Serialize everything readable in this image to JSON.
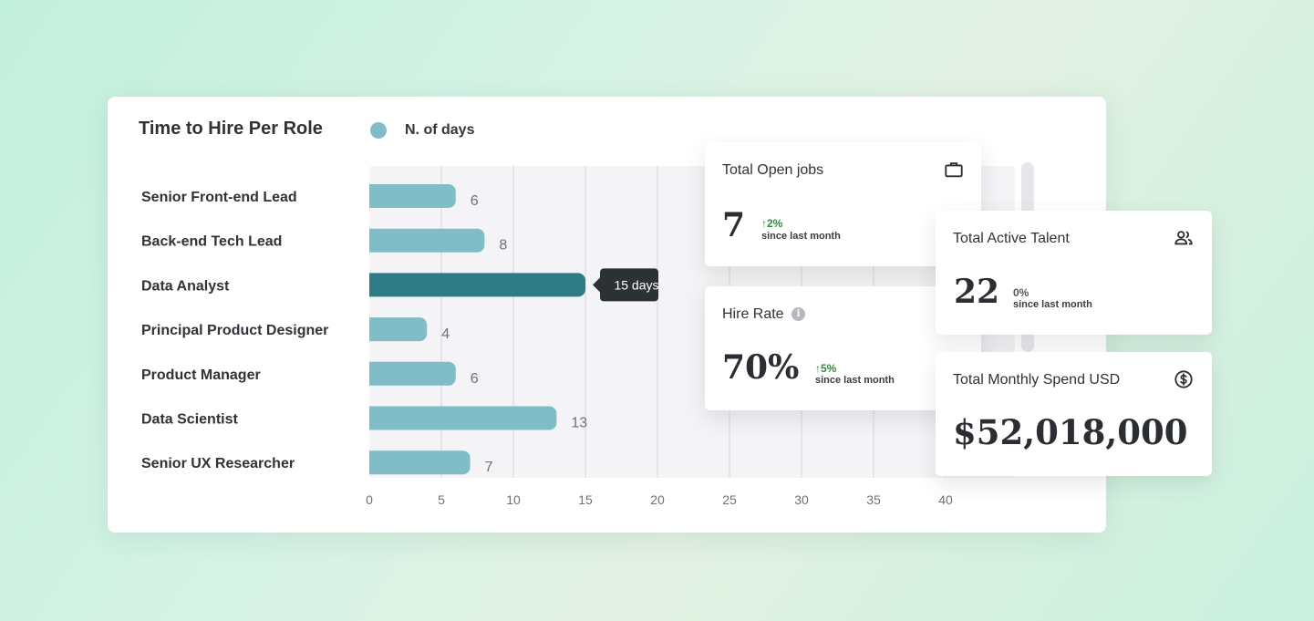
{
  "chart": {
    "title": "Time to Hire Per Role",
    "legend_label": "N. of days",
    "tooltip": "15 days"
  },
  "chart_data": {
    "type": "bar",
    "orientation": "horizontal",
    "title": "Time to Hire Per Role",
    "categories": [
      "Senior Front-end Lead",
      "Back-end Tech Lead",
      "Data Analyst",
      "Principal Product Designer",
      "Product Manager",
      "Data Scientist",
      "Senior UX Researcher"
    ],
    "series": [
      {
        "name": "N. of days",
        "values": [
          6,
          8,
          15,
          4,
          6,
          13,
          7
        ]
      }
    ],
    "highlighted_category": "Data Analyst",
    "xlim": [
      0,
      40
    ],
    "xticks": [
      0,
      5,
      10,
      15,
      20,
      25,
      30,
      35,
      40
    ],
    "grid": true,
    "legend_position": "top"
  },
  "cards": {
    "open_jobs": {
      "title": "Total Open jobs",
      "icon": "briefcase-icon",
      "value": "7",
      "delta": "↑2%",
      "delta_sub": "since last month"
    },
    "hire_rate": {
      "title": "Hire Rate",
      "icon": "info-icon",
      "info_glyph": "i",
      "value": "70%",
      "delta": "↑5%",
      "delta_sub": "since last month"
    },
    "active_talent": {
      "title": "Total Active Talent",
      "icon": "users-icon",
      "value": "22",
      "delta": "0%",
      "delta_sub": "since last month"
    },
    "monthly_spend": {
      "title": "Total Monthly Spend USD",
      "icon": "dollar-circle-icon",
      "value": "$52,018,000"
    }
  },
  "colors": {
    "bar": "#80bdc8",
    "bar_highlight": "#2f7b86",
    "tooltip_bg": "#2c3136",
    "grid": "#e1e0e5",
    "delta_up": "#2f8a43"
  }
}
